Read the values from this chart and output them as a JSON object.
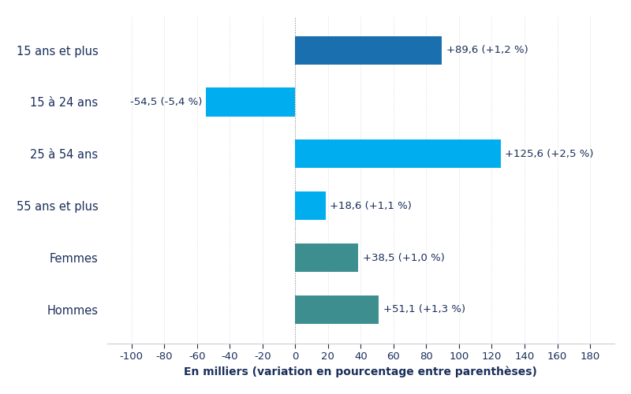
{
  "categories": [
    "15 ans et plus",
    "15 à 24 ans",
    "25 à 54 ans",
    "55 ans et plus",
    "Femmes",
    "Hommes"
  ],
  "values": [
    89.6,
    -54.5,
    125.6,
    18.6,
    38.5,
    51.1
  ],
  "labels": [
    "+89,6 (+1,2 %)",
    "-54,5 (-5,4 %)",
    "+125,6 (+2,5 %)",
    "+18,6 (+1,1 %)",
    "+38,5 (+1,0 %)",
    "+51,1 (+1,3 %)"
  ],
  "colors": [
    "#1a6faf",
    "#00aeef",
    "#00aeef",
    "#00aeef",
    "#3d8f8f",
    "#3d8f8f"
  ],
  "xlim": [
    -115,
    195
  ],
  "xticks": [
    -100,
    -80,
    -60,
    -40,
    -20,
    0,
    20,
    40,
    60,
    80,
    100,
    120,
    140,
    160,
    180
  ],
  "xlabel": "En milliers (variation en pourcentage entre parenthèses)",
  "xlabel_fontsize": 10,
  "label_color": "#1a2e5a",
  "tick_label_color": "#1a2e5a",
  "background_color": "#ffffff",
  "bar_height": 0.55,
  "label_fontsize": 9.5,
  "category_fontsize": 10.5,
  "figsize": [
    8.0,
    5.0
  ],
  "dpi": 100
}
